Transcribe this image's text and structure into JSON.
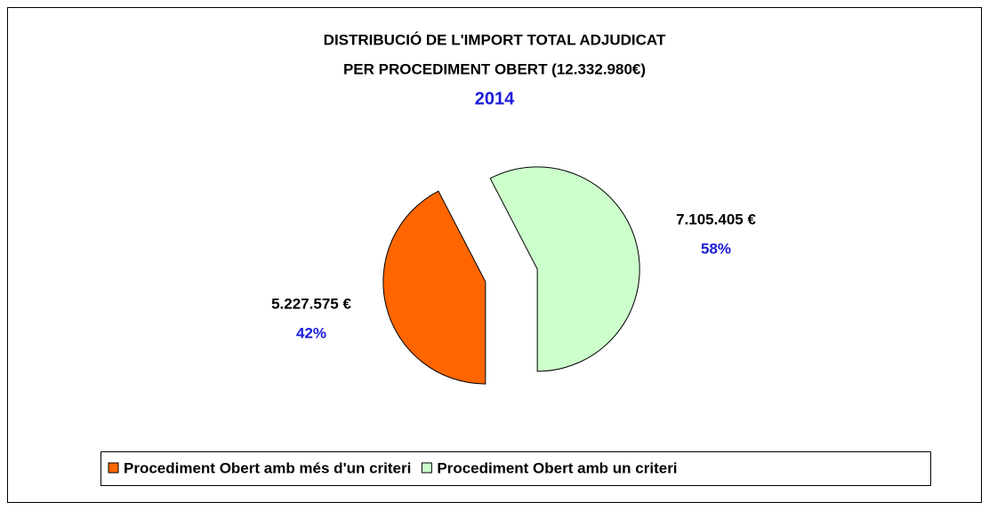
{
  "chart_data": {
    "type": "pie",
    "title": [
      "DISTRIBUCIÓ DE L'IMPORT TOTAL ADJUDICAT",
      "PER PROCEDIMENT OBERT (12.332.980€)"
    ],
    "subtitle": "2014",
    "categories": [
      "Procediment Obert amb més d'un criteri",
      "Procediment Obert amb un criteri"
    ],
    "values": [
      5227575,
      7105405
    ],
    "value_labels": [
      "5.227.575 €",
      "7.105.405 €"
    ],
    "percent_labels": [
      "42%",
      "58%"
    ],
    "colors": [
      "#ff6600",
      "#ccffcc"
    ],
    "legend": "bottom"
  }
}
